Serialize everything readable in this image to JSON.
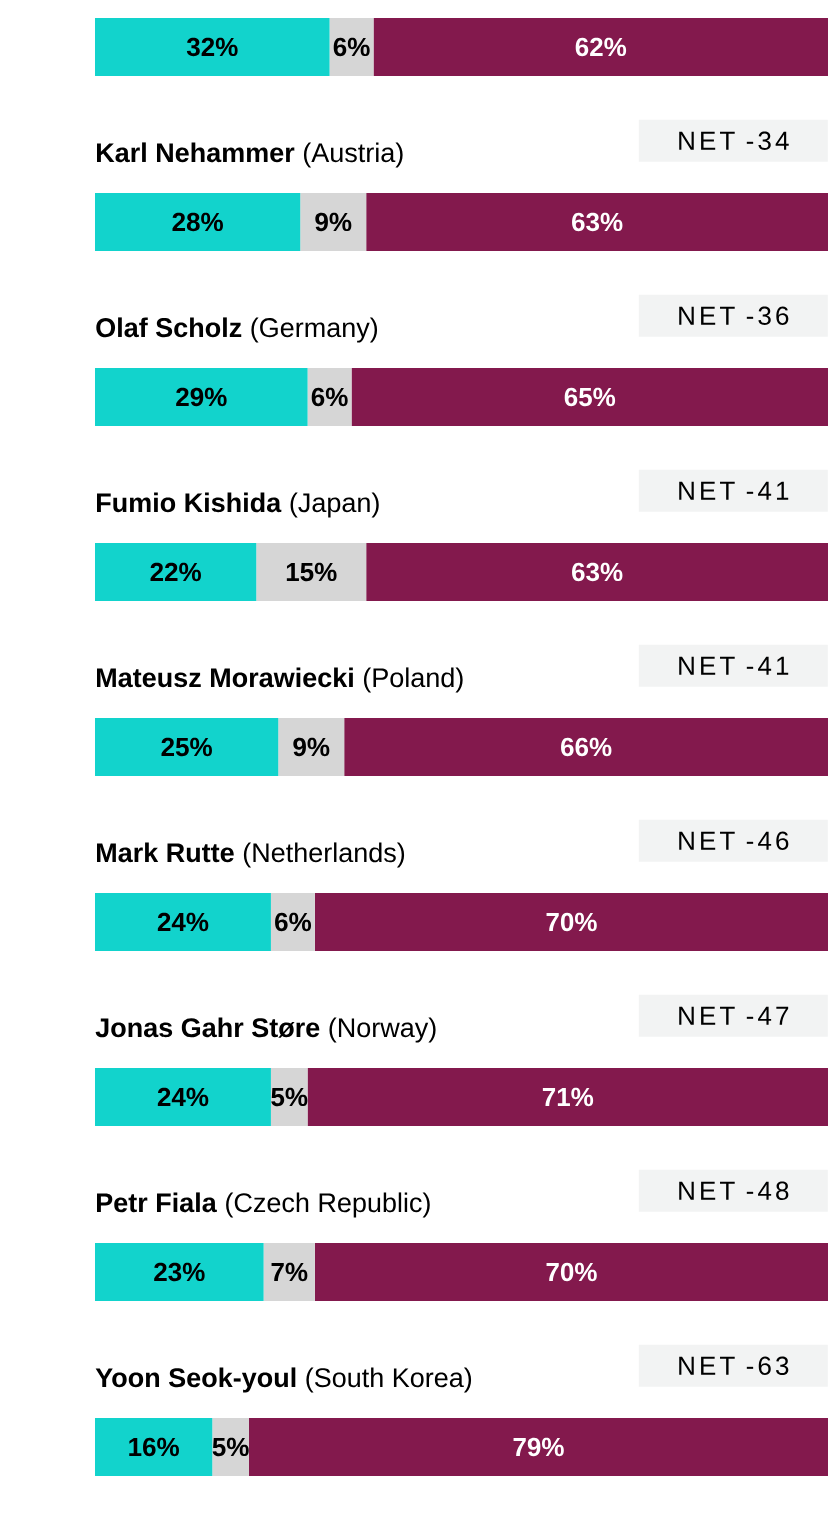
{
  "chart_data": {
    "type": "bar",
    "orientation": "horizontal",
    "stacked": true,
    "categories": [
      null,
      "**Karl Nehammer** (Austria)",
      "**Olaf Scholz** (Germany)",
      "**Fumio Kishida** (Japan)",
      "**Mateusz Morawiecki** (Poland)",
      "**Mark Rutte** (Netherlands)",
      "**Jonas Gahr Støre** (Norway)",
      "**Petr Fiala** (Czech Republic)",
      "**Yoon Seok-youl** (South Korea)"
    ],
    "series": [
      {
        "color": "#12d3cc",
        "values": [
          32,
          28,
          29,
          22,
          25,
          24,
          24,
          23,
          16
        ],
        "value_labels": [
          "32%",
          "28%",
          "29%",
          "22%",
          "25%",
          "24%",
          "24%",
          "23%",
          "16%"
        ]
      },
      {
        "color": "#d6d6d6",
        "values": [
          6,
          9,
          6,
          15,
          9,
          6,
          5,
          7,
          5
        ],
        "value_labels": [
          "6%",
          "9%",
          "6%",
          "15%",
          "9%",
          "6%",
          "5%",
          "7%",
          "5%"
        ]
      },
      {
        "color": "#83194d",
        "values": [
          62,
          63,
          65,
          63,
          66,
          70,
          71,
          70,
          79
        ],
        "value_labels": [
          "62%",
          "63%",
          "65%",
          "63%",
          "66%",
          "70%",
          "71%",
          "70%",
          "79%"
        ]
      }
    ],
    "annotations": [
      "NET -34",
      "NET -36",
      "NET -41",
      "NET -41",
      "NET -46",
      "NET -47",
      "NET -48",
      "NET -63"
    ]
  }
}
